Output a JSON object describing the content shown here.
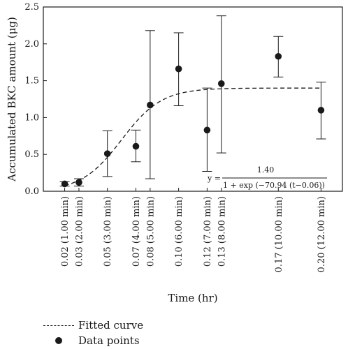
{
  "chart_data": {
    "type": "scatter",
    "ylabel": "Accumulated BKC amount (μg)",
    "xlabel": "Time (hr)",
    "ylim": [
      0,
      2.5
    ],
    "yticks": [
      "0.0",
      "0.5",
      "1.0",
      "1.5",
      "2.0",
      "2.5"
    ],
    "xlim": [
      0.005,
      0.215
    ],
    "grid": false,
    "legend_position": "bottom-left",
    "x": [
      0.02,
      0.03,
      0.05,
      0.07,
      0.08,
      0.1,
      0.12,
      0.13,
      0.17,
      0.2
    ],
    "xtick_labels": [
      "0.02 (1.00 min)",
      "0.03 (2.00 min)",
      "0.05 (3.00 min)",
      "0.07 (4.00 min)",
      "0.08 (5.00 min)",
      "0.10 (6.00 min)",
      "0.12 (7.00 min)",
      "0.13 (8.00 min)",
      "0.17 (10.00 min)",
      "0.20 (12.00 min)"
    ],
    "series": [
      {
        "name": "Data points",
        "values": [
          0.1,
          0.12,
          0.51,
          0.61,
          1.17,
          1.66,
          0.83,
          1.46,
          1.83,
          1.1
        ],
        "err_low": [
          0.07,
          0.07,
          0.2,
          0.4,
          0.17,
          1.16,
          0.27,
          0.52,
          1.55,
          0.71
        ],
        "err_high": [
          0.13,
          0.17,
          0.82,
          0.83,
          2.18,
          2.15,
          1.4,
          2.38,
          2.1,
          1.48
        ]
      },
      {
        "name": "Fitted curve",
        "model": "logistic",
        "amplitude": 1.4,
        "rate": -70.94,
        "midpoint": 0.06
      }
    ],
    "legend": [
      "Fitted curve",
      "Data points"
    ],
    "equation": {
      "lhs": "y =",
      "numerator": "1.40",
      "denominator": "1 + exp (−70.94 (t−0.06))"
    },
    "colors": {
      "ink": "#1a1a1a",
      "background": "#ffffff"
    }
  }
}
